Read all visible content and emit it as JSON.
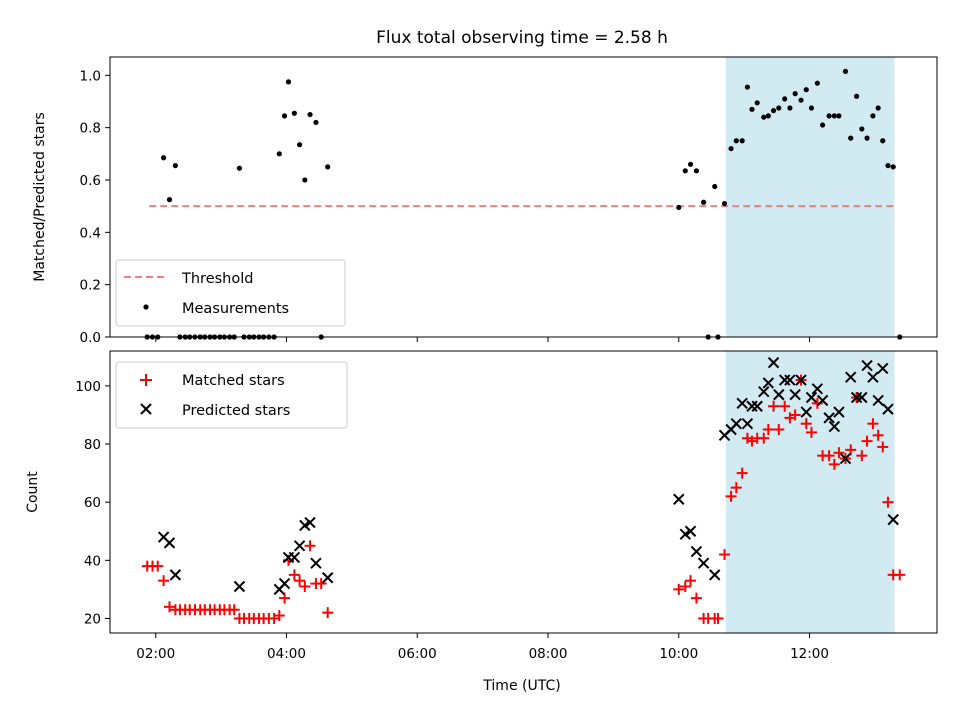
{
  "title": "Flux total observing time = 2.58 h",
  "colors": {
    "threshold": "#f07f7f",
    "measurement": "#000000",
    "matched": "#ff0000",
    "predicted": "#000000",
    "highlight": "#add8e6"
  },
  "chart_data": [
    {
      "type": "scatter",
      "panel": "top",
      "ylabel": "Matched/Predicted stars",
      "ylim": [
        0,
        1.07
      ],
      "yticks": [
        0.0,
        0.2,
        0.4,
        0.6,
        0.8,
        1.0
      ],
      "ytick_labels": [
        "0.0",
        "0.2",
        "0.4",
        "0.6",
        "0.8",
        "1.0"
      ],
      "xlim": [
        1.3,
        13.95
      ],
      "legend_position": "lower-left",
      "highlight_span": [
        10.72,
        13.3
      ],
      "threshold": {
        "name": "Threshold",
        "y": 0.5,
        "x": [
          1.9,
          13.3
        ]
      },
      "series": [
        {
          "name": "Measurements",
          "points": [
            [
              1.87,
              0
            ],
            [
              1.95,
              0
            ],
            [
              2.03,
              0
            ],
            [
              2.12,
              0.685
            ],
            [
              2.21,
              0.525
            ],
            [
              2.3,
              0.655
            ],
            [
              2.37,
              0
            ],
            [
              2.45,
              0
            ],
            [
              2.52,
              0
            ],
            [
              2.6,
              0
            ],
            [
              2.68,
              0
            ],
            [
              2.75,
              0
            ],
            [
              2.83,
              0
            ],
            [
              2.9,
              0
            ],
            [
              2.98,
              0
            ],
            [
              3.05,
              0
            ],
            [
              3.13,
              0
            ],
            [
              3.2,
              0
            ],
            [
              3.28,
              0.645
            ],
            [
              3.35,
              0
            ],
            [
              3.43,
              0
            ],
            [
              3.5,
              0
            ],
            [
              3.58,
              0
            ],
            [
              3.65,
              0
            ],
            [
              3.73,
              0
            ],
            [
              3.81,
              0
            ],
            [
              3.89,
              0.7
            ],
            [
              3.97,
              0.845
            ],
            [
              4.03,
              0.975
            ],
            [
              4.12,
              0.855
            ],
            [
              4.2,
              0.735
            ],
            [
              4.28,
              0.6
            ],
            [
              4.36,
              0.85
            ],
            [
              4.45,
              0.82
            ],
            [
              4.53,
              0
            ],
            [
              4.63,
              0.65
            ],
            [
              10.0,
              0.495
            ],
            [
              10.1,
              0.635
            ],
            [
              10.18,
              0.66
            ],
            [
              10.27,
              0.635
            ],
            [
              10.38,
              0.515
            ],
            [
              10.45,
              0
            ],
            [
              10.55,
              0.575
            ],
            [
              10.6,
              0
            ],
            [
              10.7,
              0.51
            ],
            [
              10.8,
              0.72
            ],
            [
              10.88,
              0.75
            ],
            [
              10.97,
              0.75
            ],
            [
              11.05,
              0.955
            ],
            [
              11.12,
              0.87
            ],
            [
              11.2,
              0.895
            ],
            [
              11.3,
              0.84
            ],
            [
              11.37,
              0.845
            ],
            [
              11.45,
              0.865
            ],
            [
              11.53,
              0.875
            ],
            [
              11.62,
              0.91
            ],
            [
              11.7,
              0.875
            ],
            [
              11.78,
              0.93
            ],
            [
              11.87,
              0.905
            ],
            [
              11.95,
              0.945
            ],
            [
              12.03,
              0.875
            ],
            [
              12.12,
              0.97
            ],
            [
              12.2,
              0.81
            ],
            [
              12.3,
              0.845
            ],
            [
              12.38,
              0.845
            ],
            [
              12.45,
              0.845
            ],
            [
              12.55,
              1.015
            ],
            [
              12.63,
              0.76
            ],
            [
              12.72,
              0.92
            ],
            [
              12.8,
              0.795
            ],
            [
              12.88,
              0.76
            ],
            [
              12.97,
              0.845
            ],
            [
              13.05,
              0.875
            ],
            [
              13.12,
              0.75
            ],
            [
              13.2,
              0.655
            ],
            [
              13.28,
              0.65
            ],
            [
              13.38,
              0
            ]
          ]
        }
      ]
    },
    {
      "type": "scatter",
      "panel": "bottom",
      "xlabel": "Time (UTC)",
      "ylabel": "Count",
      "ylim": [
        15,
        112
      ],
      "yticks": [
        20,
        40,
        60,
        80,
        100
      ],
      "ytick_labels": [
        "20",
        "40",
        "60",
        "80",
        "100"
      ],
      "xlim": [
        1.3,
        13.95
      ],
      "xticks": [
        2,
        4,
        6,
        8,
        10,
        12
      ],
      "xtick_labels": [
        "02:00",
        "04:00",
        "06:00",
        "08:00",
        "10:00",
        "12:00"
      ],
      "legend_position": "upper-left",
      "highlight_span": [
        10.72,
        13.3
      ],
      "series": [
        {
          "name": "Matched stars",
          "marker": "plus",
          "points": [
            [
              1.87,
              38
            ],
            [
              1.95,
              38
            ],
            [
              2.03,
              38
            ],
            [
              2.12,
              33
            ],
            [
              2.21,
              24
            ],
            [
              2.3,
              23
            ],
            [
              2.37,
              23
            ],
            [
              2.45,
              23
            ],
            [
              2.52,
              23
            ],
            [
              2.6,
              23
            ],
            [
              2.68,
              23
            ],
            [
              2.75,
              23
            ],
            [
              2.83,
              23
            ],
            [
              2.9,
              23
            ],
            [
              2.98,
              23
            ],
            [
              3.05,
              23
            ],
            [
              3.13,
              23
            ],
            [
              3.2,
              23
            ],
            [
              3.28,
              20
            ],
            [
              3.35,
              20
            ],
            [
              3.43,
              20
            ],
            [
              3.5,
              20
            ],
            [
              3.58,
              20
            ],
            [
              3.65,
              20
            ],
            [
              3.73,
              20
            ],
            [
              3.81,
              20
            ],
            [
              3.89,
              21
            ],
            [
              3.97,
              27
            ],
            [
              4.03,
              40
            ],
            [
              4.12,
              35
            ],
            [
              4.2,
              33
            ],
            [
              4.28,
              31
            ],
            [
              4.36,
              45
            ],
            [
              4.45,
              32
            ],
            [
              4.53,
              32
            ],
            [
              4.63,
              22
            ],
            [
              10.0,
              30
            ],
            [
              10.1,
              31
            ],
            [
              10.18,
              33
            ],
            [
              10.27,
              27
            ],
            [
              10.38,
              20
            ],
            [
              10.45,
              20
            ],
            [
              10.55,
              20
            ],
            [
              10.6,
              20
            ],
            [
              10.7,
              42
            ],
            [
              10.8,
              62
            ],
            [
              10.88,
              65
            ],
            [
              10.97,
              70
            ],
            [
              11.05,
              82
            ],
            [
              11.12,
              81
            ],
            [
              11.2,
              82
            ],
            [
              11.3,
              82
            ],
            [
              11.37,
              85
            ],
            [
              11.45,
              93
            ],
            [
              11.53,
              85
            ],
            [
              11.62,
              93
            ],
            [
              11.7,
              89
            ],
            [
              11.78,
              90
            ],
            [
              11.87,
              102
            ],
            [
              11.95,
              87
            ],
            [
              12.03,
              84
            ],
            [
              12.12,
              94
            ],
            [
              12.2,
              76
            ],
            [
              12.3,
              76
            ],
            [
              12.38,
              73
            ],
            [
              12.45,
              77
            ],
            [
              12.55,
              75
            ],
            [
              12.63,
              78
            ],
            [
              12.72,
              96
            ],
            [
              12.8,
              76
            ],
            [
              12.88,
              81
            ],
            [
              12.97,
              87
            ],
            [
              13.05,
              83
            ],
            [
              13.12,
              79
            ],
            [
              13.2,
              60
            ],
            [
              13.28,
              35
            ],
            [
              13.38,
              35
            ]
          ]
        },
        {
          "name": "Predicted stars",
          "marker": "x",
          "points": [
            [
              2.12,
              48
            ],
            [
              2.21,
              46
            ],
            [
              2.3,
              35
            ],
            [
              3.28,
              31
            ],
            [
              3.89,
              30
            ],
            [
              3.97,
              32
            ],
            [
              4.03,
              41
            ],
            [
              4.12,
              41
            ],
            [
              4.2,
              45
            ],
            [
              4.28,
              52
            ],
            [
              4.36,
              53
            ],
            [
              4.45,
              39
            ],
            [
              4.63,
              34
            ],
            [
              10.0,
              61
            ],
            [
              10.1,
              49
            ],
            [
              10.18,
              50
            ],
            [
              10.27,
              43
            ],
            [
              10.38,
              39
            ],
            [
              10.55,
              35
            ],
            [
              10.7,
              83
            ],
            [
              10.8,
              85
            ],
            [
              10.88,
              87
            ],
            [
              10.97,
              94
            ],
            [
              11.05,
              87
            ],
            [
              11.12,
              93
            ],
            [
              11.2,
              93
            ],
            [
              11.3,
              98
            ],
            [
              11.37,
              101
            ],
            [
              11.45,
              108
            ],
            [
              11.53,
              97
            ],
            [
              11.62,
              102
            ],
            [
              11.7,
              102
            ],
            [
              11.78,
              97
            ],
            [
              11.87,
              102
            ],
            [
              11.95,
              91
            ],
            [
              12.03,
              96
            ],
            [
              12.12,
              99
            ],
            [
              12.2,
              95
            ],
            [
              12.3,
              89
            ],
            [
              12.38,
              86
            ],
            [
              12.45,
              91
            ],
            [
              12.55,
              75
            ],
            [
              12.63,
              103
            ],
            [
              12.72,
              96
            ],
            [
              12.8,
              96
            ],
            [
              12.88,
              107
            ],
            [
              12.97,
              103
            ],
            [
              13.05,
              95
            ],
            [
              13.12,
              106
            ],
            [
              13.2,
              92
            ],
            [
              13.28,
              54
            ]
          ]
        }
      ]
    }
  ]
}
